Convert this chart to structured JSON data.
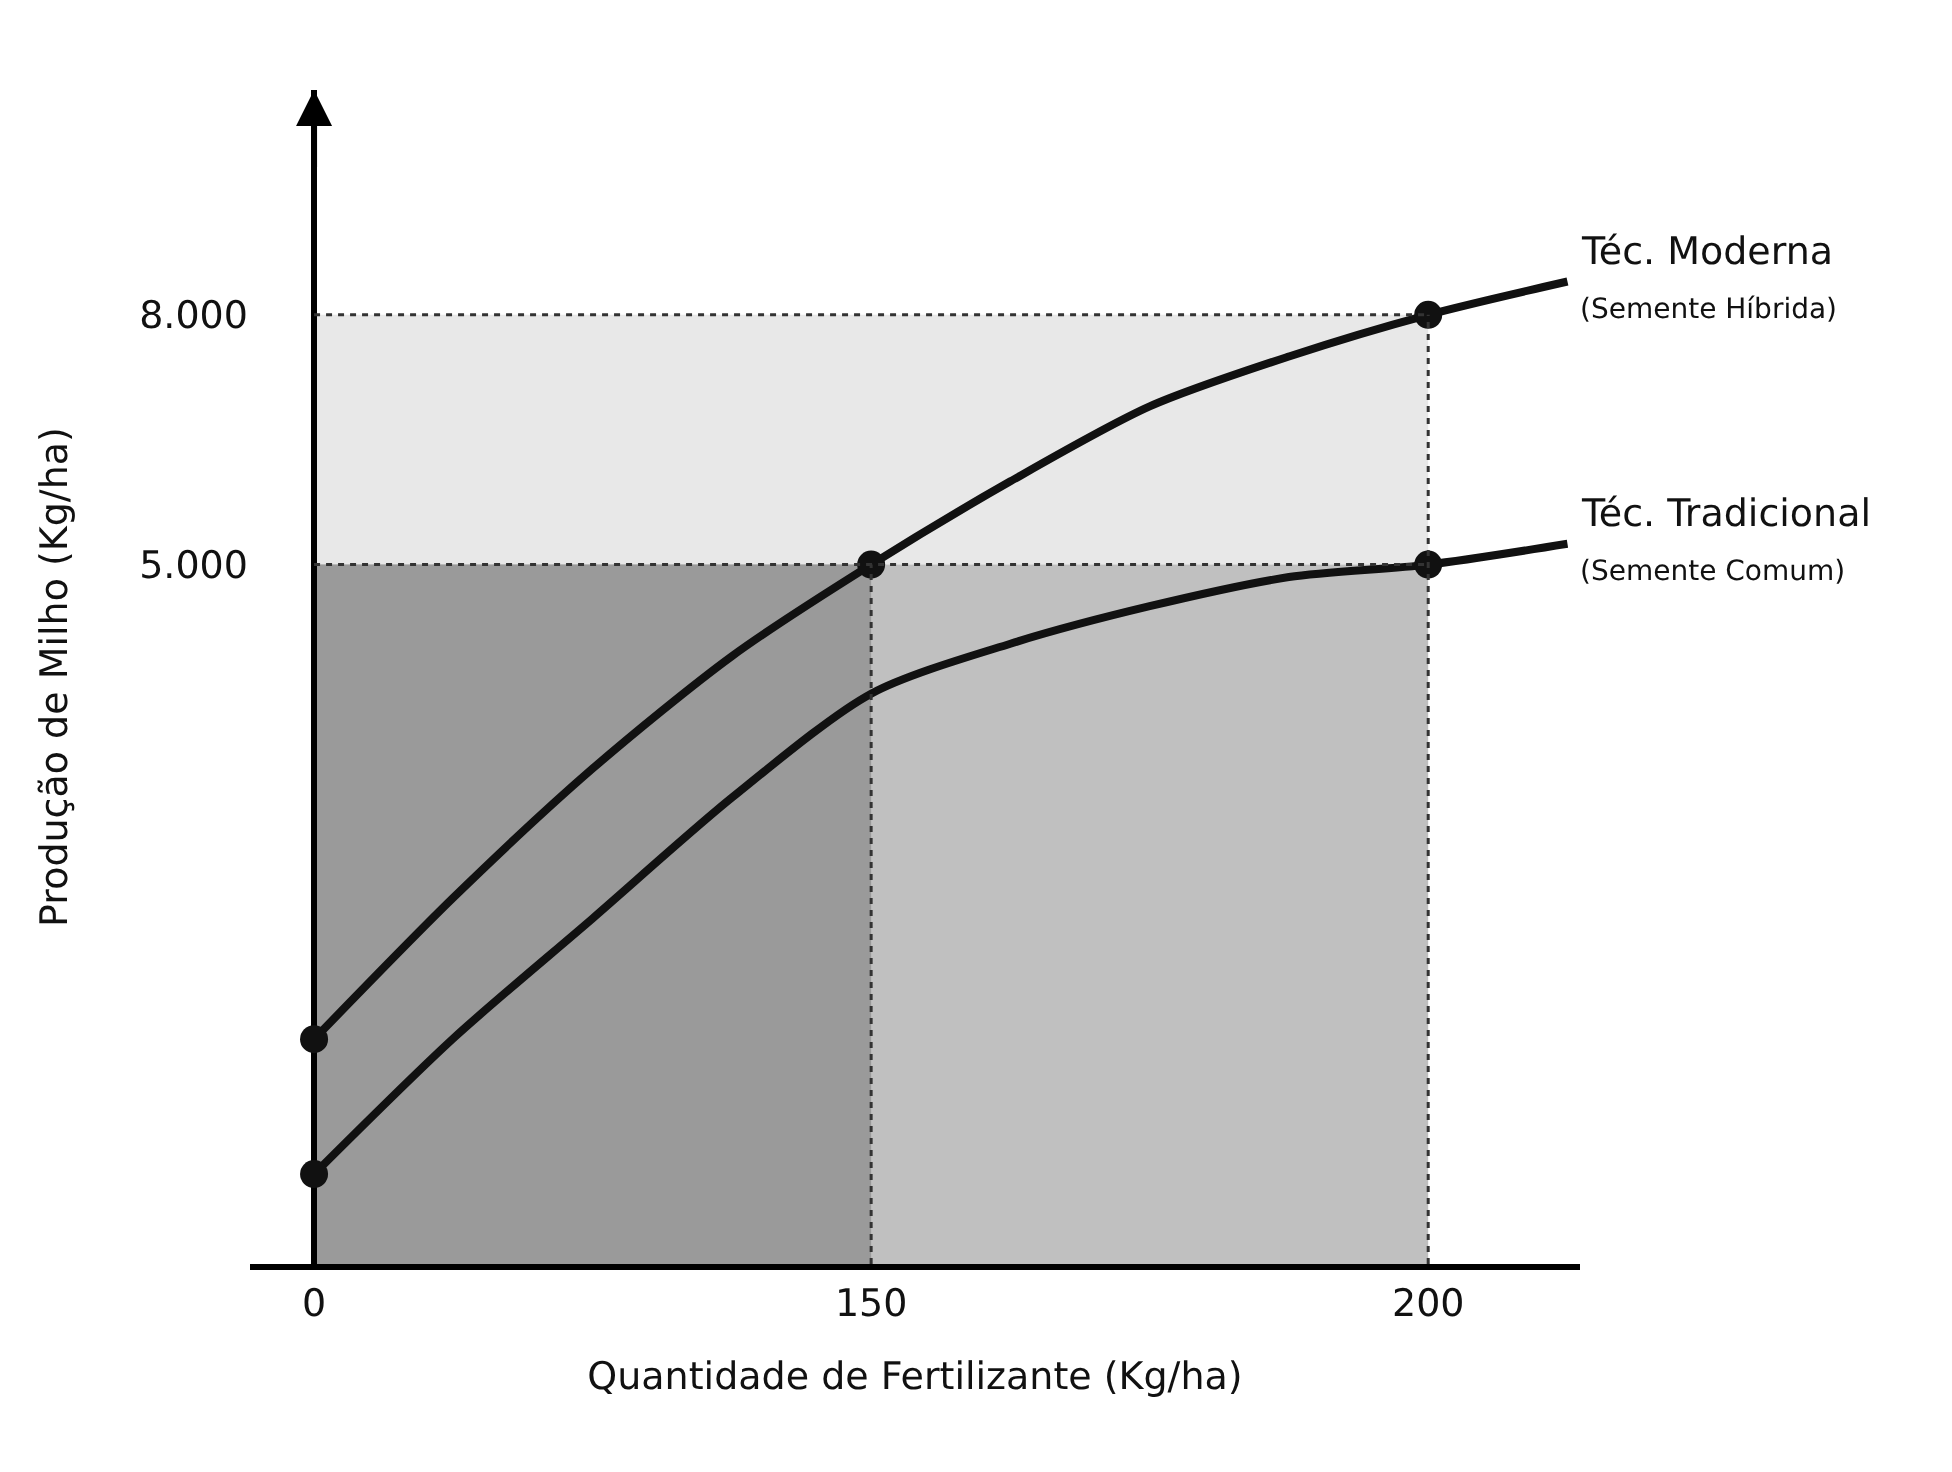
{
  "chart_data": {
    "type": "line",
    "xlabel": "Quantidade de Fertilizante (Kg/ha)",
    "ylabel": "Produção de Milho (Kg/ha)",
    "categories": [
      "0",
      null,
      null,
      null,
      "150",
      null,
      null,
      null,
      "200",
      null
    ],
    "series": [
      {
        "name": "Téc. Moderna",
        "color": "#111111",
        "marker": "none",
        "line_style": "solid",
        "values": [
          -700,
          1000,
          2550,
          3900,
          5000,
          6000,
          6900,
          7500,
          8000,
          8400
        ]
      },
      {
        "name": "Téc. Tradicional",
        "color": "#111111",
        "marker": "none",
        "line_style": "solid",
        "values": [
          -2320,
          -690,
          750,
          2200,
          3450,
          4050,
          4500,
          4850,
          5000,
          5250
        ]
      },
      {
        "color": "#111111",
        "type": "scatter",
        "marker": "circle",
        "x": [
          "0",
          "150",
          "200",
          "0",
          "200"
        ],
        "values": [
          -700,
          5000,
          8000,
          -2320,
          5000
        ]
      }
    ],
    "annotations": [
      "(Semente Híbrida)",
      "(Semente Comum)"
    ],
    "ylim": [
      -3400,
      10700
    ],
    "yticks": [
      {
        "value": 5000,
        "label": "5.000"
      },
      {
        "value": 8000,
        "label": "8.000"
      }
    ],
    "bands": [
      {
        "axis": "y",
        "from": 5000,
        "to": 8000,
        "color": "#e8e8e8"
      },
      {
        "axis": "y",
        "from": -3400,
        "to": 5000,
        "color": "#c0c0c0"
      },
      {
        "axis": "x",
        "from": "0",
        "to": "150",
        "color": "#9a9a9a"
      }
    ],
    "ref_lines": [
      {
        "axis": "y",
        "value": 5000,
        "line_style": "dotted",
        "color": "#333333"
      },
      {
        "axis": "y",
        "value": 8000,
        "line_style": "dotted",
        "color": "#333333"
      },
      {
        "axis": "x",
        "value": "150",
        "line_style": "dotted",
        "color": "#333333"
      },
      {
        "axis": "x",
        "value": "200",
        "line_style": "dotted",
        "color": "#333333"
      }
    ],
    "grid": false
  }
}
